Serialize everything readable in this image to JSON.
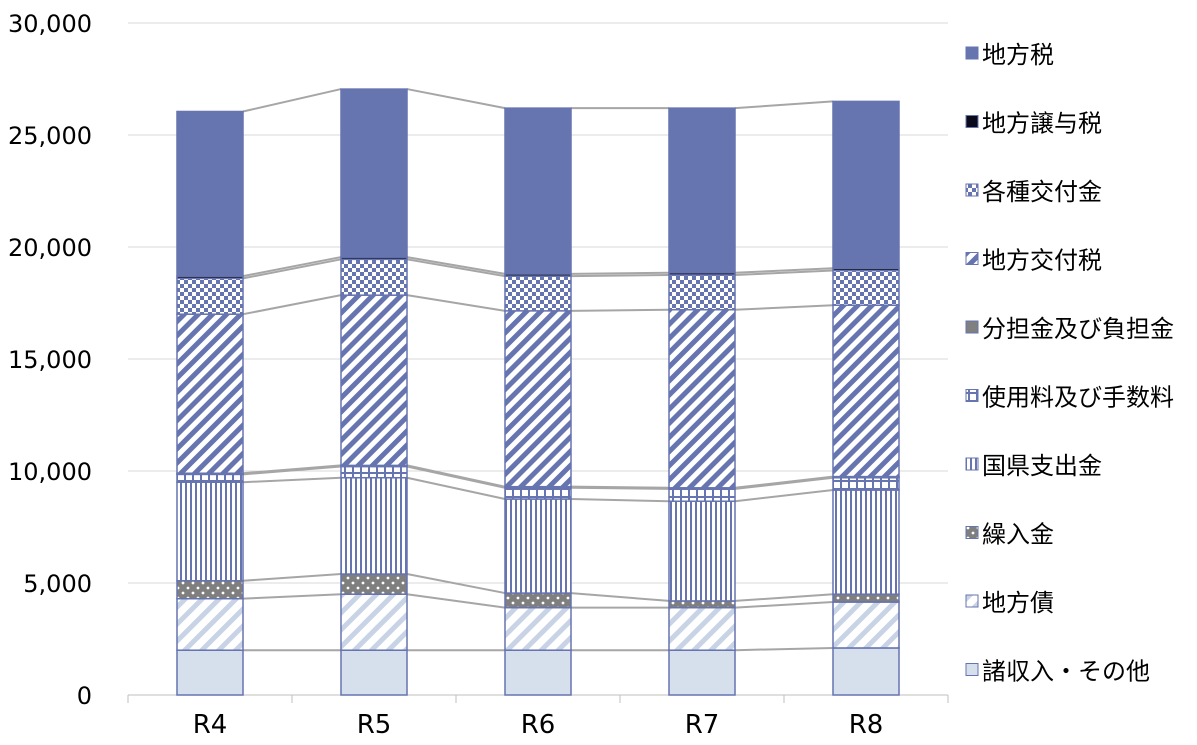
{
  "chart_data": {
    "type": "bar",
    "stacked": true,
    "categories": [
      "R4",
      "R5",
      "R6",
      "R7",
      "R8"
    ],
    "ylim": [
      0,
      30000
    ],
    "yticks": [
      0,
      5000,
      10000,
      15000,
      20000,
      25000,
      30000
    ],
    "ytick_labels": [
      "0",
      "5,000",
      "10,000",
      "15,000",
      "20,000",
      "25,000",
      "30,000"
    ],
    "grid": true,
    "legend_position": "right",
    "series": [
      {
        "name": "諸収入・その他",
        "values": [
          2000,
          2000,
          2000,
          2000,
          2100
        ],
        "color": "#d6e0ec",
        "pattern": "solid"
      },
      {
        "name": "地方債",
        "values": [
          2300,
          2500,
          1900,
          1900,
          2050
        ],
        "color": "#c8d4e6",
        "pattern": "diag-light"
      },
      {
        "name": "繰入金",
        "values": [
          800,
          900,
          650,
          300,
          350
        ],
        "color": "#7f7f7f",
        "pattern": "dots"
      },
      {
        "name": "国県支出金",
        "values": [
          4400,
          4300,
          4200,
          4450,
          4650
        ],
        "color": "#6674b0",
        "pattern": "vertical"
      },
      {
        "name": "使用料及び手数料",
        "values": [
          350,
          500,
          500,
          550,
          550
        ],
        "color": "#6674b0",
        "pattern": "small-grid"
      },
      {
        "name": "分担金及び負担金",
        "values": [
          50,
          50,
          50,
          50,
          50
        ],
        "color": "#808080",
        "pattern": "solid"
      },
      {
        "name": "地方交付税",
        "values": [
          7100,
          7600,
          7850,
          7950,
          7650
        ],
        "color": "#6674b0",
        "pattern": "diagonal"
      },
      {
        "name": "各種交付金",
        "values": [
          1600,
          1600,
          1550,
          1550,
          1550
        ],
        "color": "#6674b0",
        "pattern": "checker"
      },
      {
        "name": "地方譲与税",
        "values": [
          100,
          100,
          100,
          100,
          100
        ],
        "color": "#0a0a1a",
        "pattern": "solid"
      },
      {
        "name": "地方税",
        "values": [
          7350,
          7500,
          7400,
          7350,
          7450
        ],
        "color": "#6674b0",
        "pattern": "solid"
      }
    ]
  }
}
